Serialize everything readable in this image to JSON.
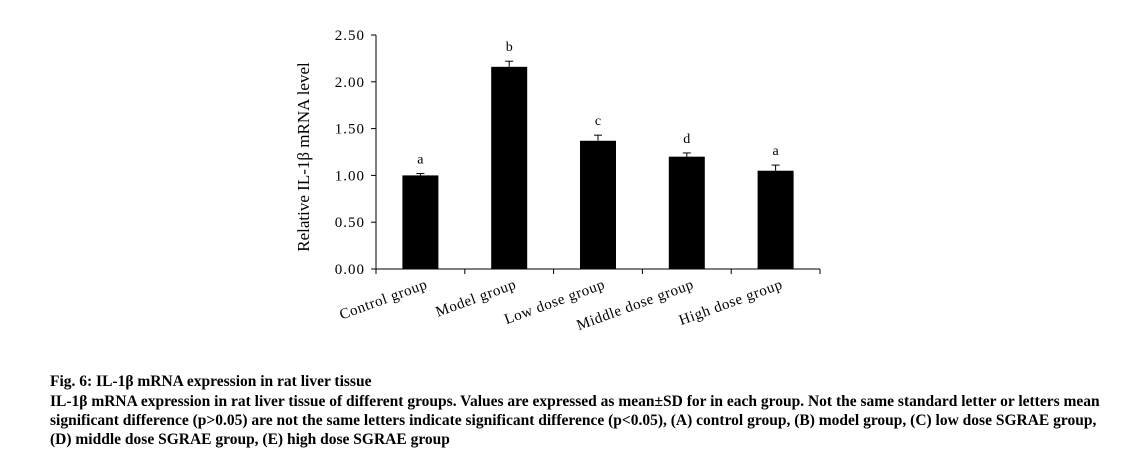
{
  "figure": {
    "title": "Fig. 6: IL-1β mRNA expression in rat liver tissue",
    "description": "IL-1β mRNA expression in rat liver tissue of different groups. Values are expressed as mean±SD for in each group. Not the same standard letter or letters mean significant difference (p>0.05) are not the same letters indicate significant difference (p<0.05), (A) control group, (B) model group, (C) low dose SGRAE group, (D) middle dose SGRAE group, (E) high dose SGRAE group"
  },
  "chart_data": {
    "type": "bar",
    "title": "",
    "xlabel": "",
    "ylabel": "Relative IL-1β mRNA level",
    "categories": [
      "Control group",
      "Model group",
      "Low dose group",
      "Middle dose group",
      "High dose group"
    ],
    "values": [
      1.0,
      2.16,
      1.37,
      1.2,
      1.05
    ],
    "errors": [
      0.02,
      0.06,
      0.06,
      0.04,
      0.06
    ],
    "labels": [
      "a",
      "b",
      "c",
      "d",
      "a"
    ],
    "ylim": [
      0,
      2.5
    ],
    "yticks": [
      "0.00",
      "0.50",
      "1.00",
      "1.50",
      "2.00",
      "2.50"
    ],
    "grid": false,
    "bar_color": "#000000"
  }
}
